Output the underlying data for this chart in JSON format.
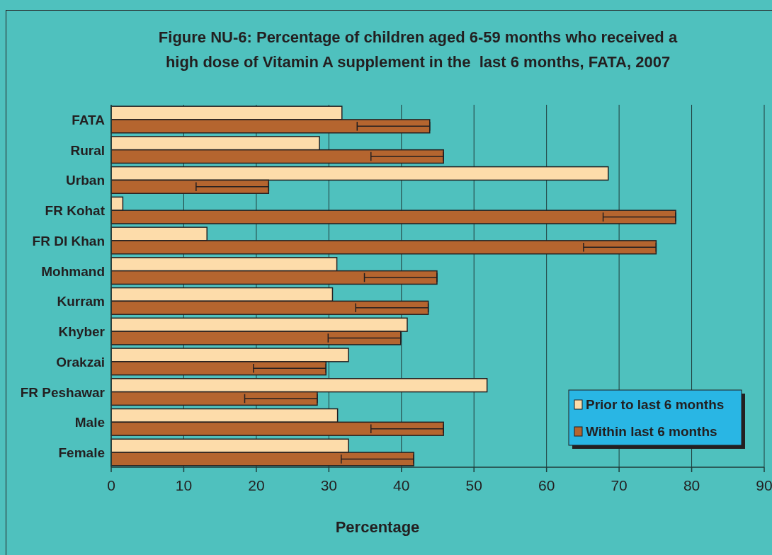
{
  "chart_data": {
    "type": "bar",
    "orientation": "horizontal",
    "title": "Figure NU-6: Percentage of children aged 6-59 months who received a high dose of Vitamin A supplement in the  last 6 months, FATA, 2007",
    "xlabel": "Percentage",
    "categories": [
      "FATA",
      "Rural",
      "Urban",
      "FR Kohat",
      "FR DI Khan",
      "Mohmand",
      "Kurram",
      "Khyber",
      "Orakzai",
      "FR Peshawar",
      "Male",
      "Female"
    ],
    "series": [
      {
        "name": "Prior to last 6 months",
        "color": "#fddcaa",
        "values": [
          31.8,
          28.7,
          68.5,
          1.6,
          13.2,
          31.1,
          30.5,
          40.8,
          32.7,
          51.8,
          31.2,
          32.7
        ]
      },
      {
        "name": "Within last 6 months",
        "color": "#b5652f",
        "values": [
          43.9,
          45.8,
          21.7,
          77.8,
          75.1,
          44.9,
          43.7,
          39.9,
          29.6,
          28.4,
          45.8,
          41.7
        ],
        "errors": [
          [
            33.9,
            43.9
          ],
          [
            35.8,
            45.8
          ],
          [
            11.7,
            21.7
          ],
          [
            67.8,
            77.8
          ],
          [
            65.1,
            75.1
          ],
          [
            34.9,
            44.9
          ],
          [
            33.7,
            43.7
          ],
          [
            29.9,
            39.9
          ],
          [
            19.6,
            29.6
          ],
          [
            18.4,
            28.4
          ],
          [
            35.8,
            45.8
          ],
          [
            31.7,
            41.7
          ]
        ]
      }
    ],
    "xlim": [
      0,
      90
    ],
    "xticks": [
      0,
      10,
      20,
      30,
      40,
      50,
      60,
      70,
      80,
      90
    ],
    "grid": "x",
    "legend": "bottom right"
  }
}
